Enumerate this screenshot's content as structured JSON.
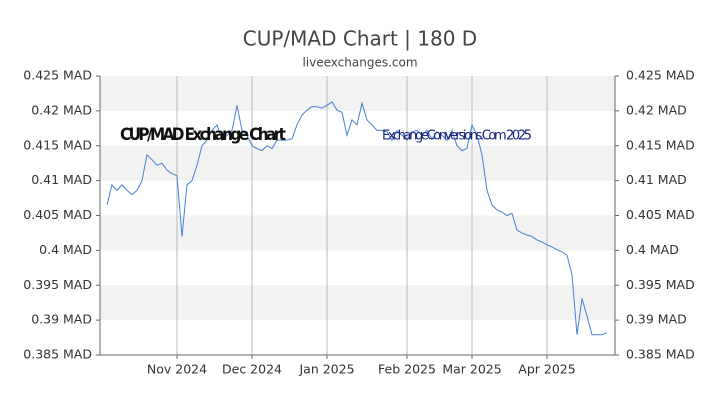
{
  "chart_data": {
    "type": "line",
    "title": "CUP/MAD Chart | 180 D",
    "subtitle": "liveexchanges.com",
    "annotations": [
      "CUP/MAD Exchange Chart",
      "ExchangeConversions.Com 2025"
    ],
    "categories": [
      null,
      null,
      null,
      null,
      null,
      null,
      null,
      null,
      null,
      null,
      null,
      null,
      null,
      null,
      "Nov 2024",
      null,
      null,
      null,
      null,
      null,
      null,
      null,
      null,
      null,
      null,
      null,
      null,
      null,
      null,
      "Dec 2024",
      null,
      null,
      null,
      null,
      null,
      null,
      null,
      null,
      null,
      null,
      null,
      null,
      null,
      null,
      "Jan 2025",
      null,
      null,
      null,
      null,
      null,
      null,
      null,
      null,
      null,
      null,
      null,
      null,
      null,
      null,
      null,
      "Feb 2025",
      null,
      null,
      null,
      null,
      null,
      null,
      null,
      null,
      null,
      null,
      null,
      null,
      "Mar 2025",
      null,
      null,
      null,
      null,
      null,
      null,
      null,
      null,
      null,
      null,
      null,
      null,
      null,
      null,
      "Apr 2025",
      null,
      null,
      null,
      null,
      null,
      null,
      null,
      null,
      null,
      null,
      null,
      null
    ],
    "series": [
      {
        "name": "CUP/MAD",
        "color": "#4a7fd4",
        "values": [
          0.4065,
          0.4094,
          0.4086,
          0.4094,
          0.4086,
          0.408,
          0.4086,
          0.41,
          0.4137,
          0.413,
          0.4122,
          0.4125,
          0.4115,
          0.411,
          0.4107,
          0.402,
          0.4094,
          0.41,
          0.4122,
          0.415,
          0.4158,
          0.4172,
          0.418,
          0.4158,
          0.4165,
          0.4172,
          0.4208,
          0.4172,
          0.4165,
          0.415,
          0.4146,
          0.4143,
          0.415,
          0.4146,
          0.4158,
          0.4158,
          0.4158,
          0.416,
          0.418,
          0.4194,
          0.4201,
          0.4206,
          0.4206,
          0.4204,
          0.4208,
          0.4213,
          0.4201,
          0.4198,
          0.4165,
          0.4187,
          0.418,
          0.4211,
          0.4187,
          0.418,
          0.4172,
          0.4172,
          0.417,
          0.4158,
          0.4172,
          0.4165,
          0.4158,
          0.417,
          0.4172,
          0.4165,
          0.4172,
          0.416,
          0.417,
          0.4165,
          0.4158,
          0.4172,
          0.415,
          0.4143,
          0.4146,
          0.418,
          0.4165,
          0.4137,
          0.4086,
          0.4065,
          0.4058,
          0.4055,
          0.405,
          0.4053,
          0.4029,
          0.4025,
          0.4022,
          0.402,
          0.4015,
          0.4012,
          0.4008,
          0.4005,
          0.4001,
          0.3998,
          0.3993,
          0.3965,
          0.3879,
          0.3931,
          0.3906,
          0.3879,
          0.3879,
          0.3879,
          0.3882
        ]
      }
    ],
    "ylim": [
      0.385,
      0.425
    ],
    "yticks": [
      {
        "value": 0.385,
        "label": "0.385 MAD"
      },
      {
        "value": 0.39,
        "label": "0.39 MAD"
      },
      {
        "value": 0.395,
        "label": "0.395 MAD"
      },
      {
        "value": 0.4,
        "label": "0.4 MAD"
      },
      {
        "value": 0.405,
        "label": "0.405 MAD"
      },
      {
        "value": 0.41,
        "label": "0.41 MAD"
      },
      {
        "value": 0.415,
        "label": "0.415 MAD"
      },
      {
        "value": 0.42,
        "label": "0.42 MAD"
      },
      {
        "value": 0.425,
        "label": "0.425 MAD"
      }
    ],
    "grid": true
  }
}
